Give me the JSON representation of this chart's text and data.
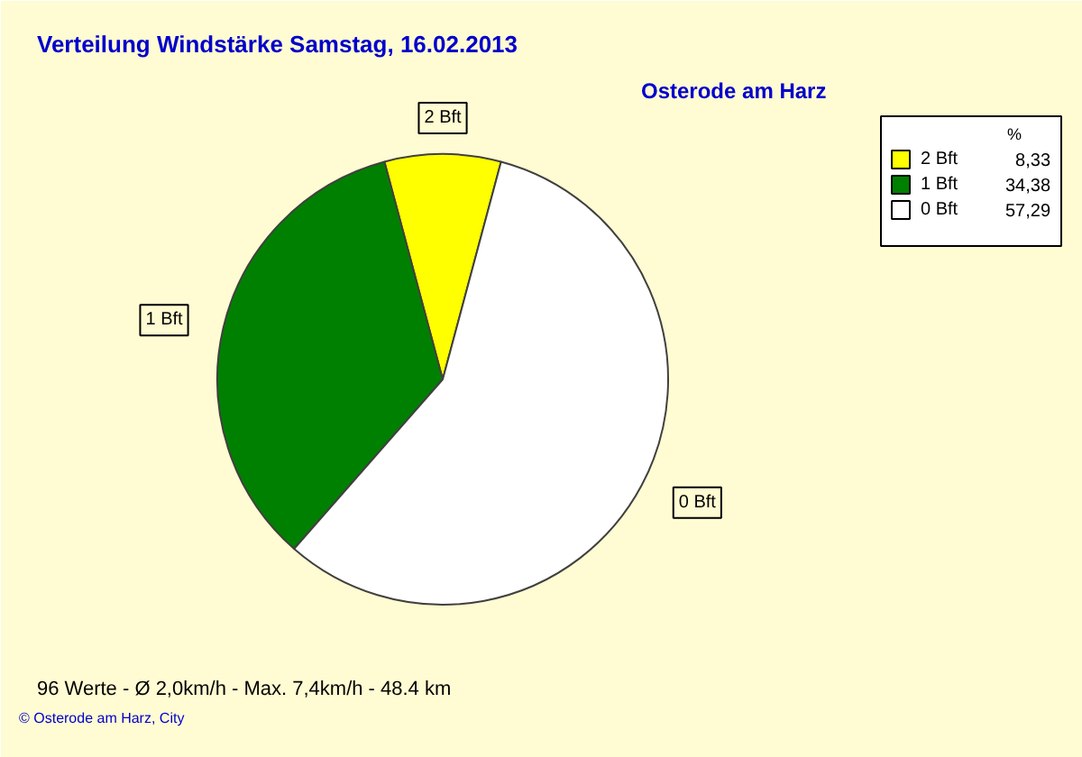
{
  "chart_data": {
    "type": "pie",
    "title": "Verteilung Windstärke  Samstag, 16.02.2013",
    "subtitle": "Osterode am Harz",
    "categories": [
      "2 Bft",
      "1 Bft",
      "0 Bft"
    ],
    "values": [
      8.33,
      34.38,
      57.29
    ],
    "colors": [
      "#ffff00",
      "#008000",
      "#ffffff"
    ],
    "value_labels": [
      "8,33",
      "34,38",
      "57,29"
    ],
    "legend_title": "%",
    "legend": "top right",
    "annotations": [
      "96 Werte  -  Ø 2,0km/h  -  Max. 7,4km/h  -  48.4 km",
      "© Osterode am Harz, City"
    ]
  }
}
